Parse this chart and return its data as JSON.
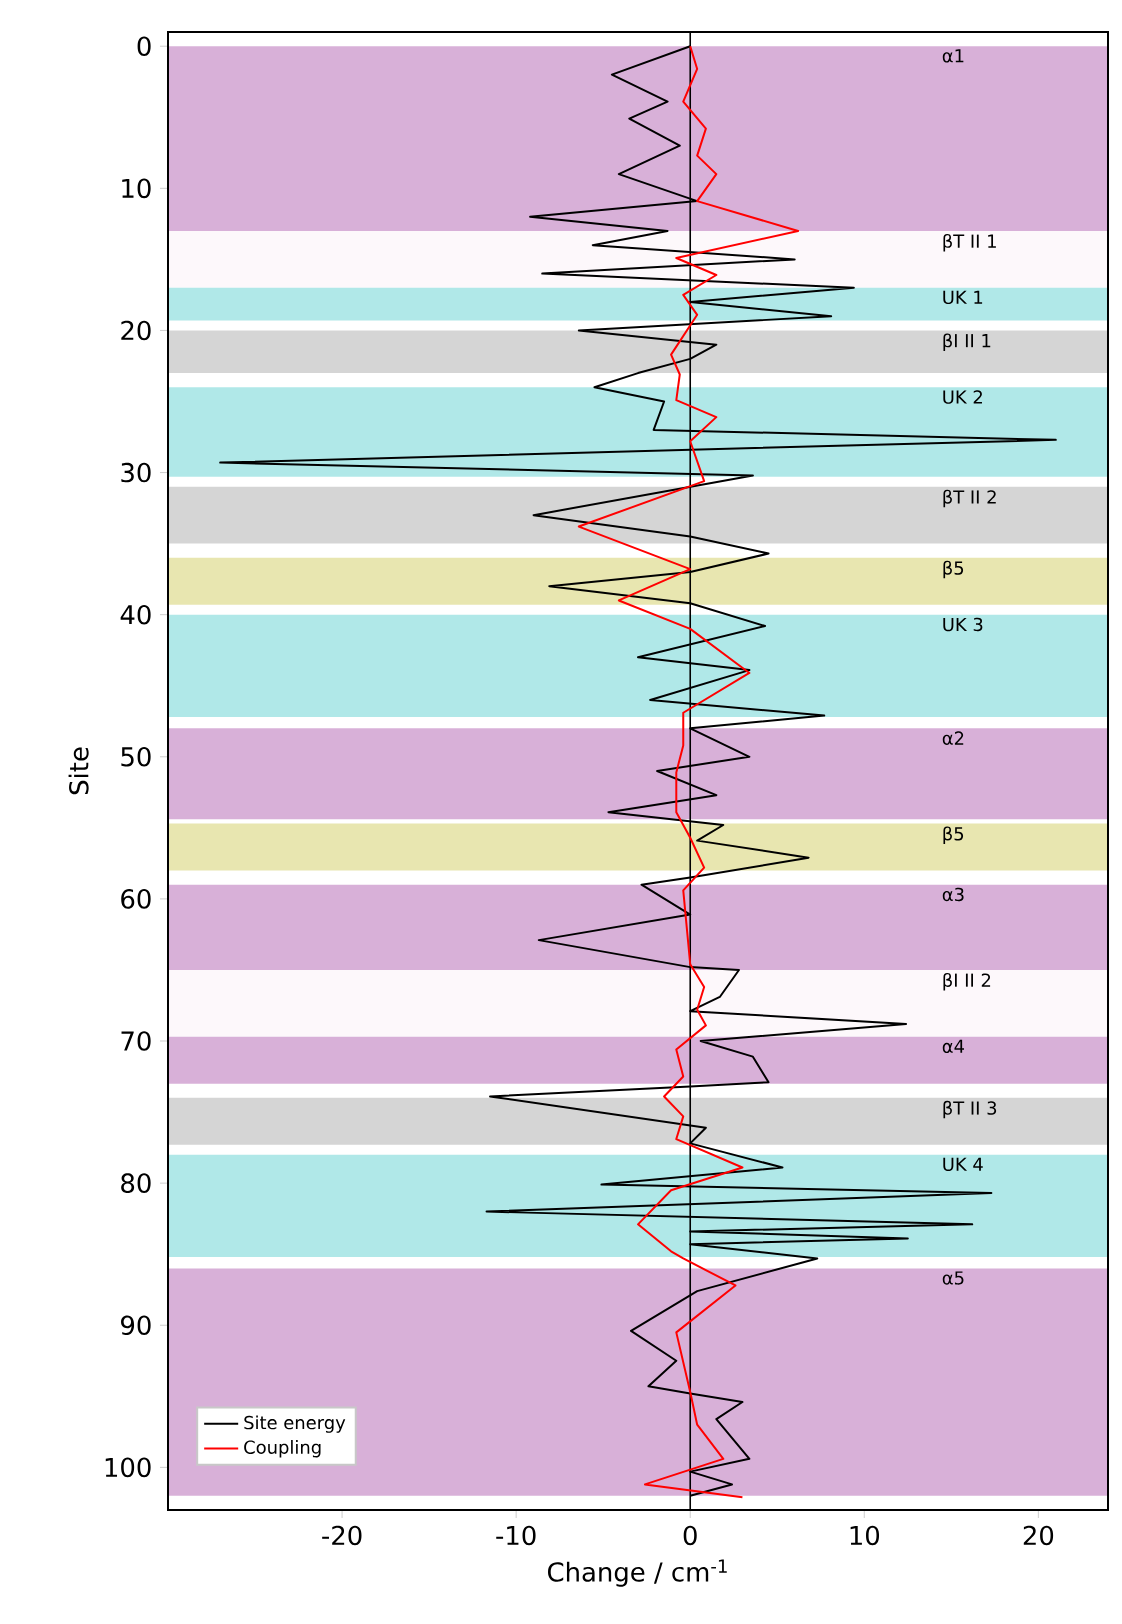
{
  "chart_data": {
    "type": "line",
    "xlabel": "Change / cm$^{-1}$",
    "ylabel": "Site",
    "xlim": [
      -30,
      24
    ],
    "ylim": [
      103,
      -1
    ],
    "xticks": [
      -20,
      -10,
      0,
      10,
      20
    ],
    "yticks": [
      0,
      10,
      20,
      30,
      40,
      50,
      60,
      70,
      80,
      90,
      100
    ],
    "legend": "bottom left",
    "grid": false,
    "line_style": "solid",
    "marker": "none",
    "series": [
      {
        "name": "Site energy",
        "color": "#000000",
        "x": [
          0,
          -4.5,
          -1.3,
          -3.5,
          -0.6,
          -4.1,
          0.4,
          -9.2,
          -1.3,
          -5.6,
          6.0,
          -8.5,
          9.4,
          0,
          8.1,
          -6.4,
          1.5,
          0,
          -3.0,
          -5.5,
          -1.5,
          -2.1,
          21,
          -27,
          3.6,
          -9.0,
          0,
          4.5,
          0,
          -8.1,
          0,
          4.3,
          -3.0,
          3.4,
          -2.3,
          7.7,
          0,
          3.4,
          -1.9,
          1.5,
          -4.7,
          1.9,
          0.4,
          6.8,
          0,
          -2.8,
          0,
          -8.7,
          0,
          2.8,
          1.7,
          0,
          12.4,
          0.6,
          3.6,
          4.5,
          0,
          -11.5,
          0.9,
          0,
          5.3,
          -5.1,
          17.3,
          -11.7,
          16.2,
          0,
          12.5,
          0,
          7.3,
          0.4,
          -3.4,
          -0.8,
          -2.4,
          0,
          3.0,
          1.5,
          3.4,
          0,
          2.4,
          0
        ],
        "values": [
          0,
          2,
          3.9,
          5.1,
          7,
          9,
          10.9,
          12,
          13,
          14,
          15,
          16,
          17,
          18,
          19,
          20,
          21,
          22,
          23,
          24,
          25,
          27,
          27.7,
          29.3,
          30.2,
          33,
          34.5,
          35.7,
          37,
          38,
          39.2,
          40.8,
          43,
          43.9,
          46,
          47.1,
          48,
          50,
          51,
          52.7,
          53.9,
          54.8,
          55.9,
          57.1,
          58.5,
          59,
          61.1,
          62.9,
          64.8,
          65,
          66.9,
          67.9,
          68.8,
          70,
          71.1,
          72.9,
          73.2,
          73.9,
          76.1,
          77.2,
          78.9,
          80.1,
          80.7,
          82,
          82.9,
          83.4,
          83.9,
          84.3,
          85.3,
          87.6,
          90.4,
          92.5,
          94.3,
          94.8,
          95.4,
          96.6,
          99.4,
          100.3,
          101.2,
          102
        ]
      },
      {
        "name": "Coupling",
        "color": "#ff0000",
        "x": [
          0,
          0.4,
          -0.4,
          0.9,
          0.4,
          1.5,
          0.4,
          6.2,
          -0.8,
          1.5,
          -0.4,
          0.4,
          -1.1,
          -0.6,
          -0.8,
          1.5,
          0,
          0.8,
          -6.4,
          0,
          -4.1,
          0,
          3.4,
          -0.4,
          -0.4,
          -0.8,
          -0.8,
          0,
          0.8,
          -0.4,
          0,
          0.8,
          0.4,
          0.9,
          -0.8,
          -0.4,
          -1.5,
          -0.4,
          -0.8,
          3.0,
          -1.1,
          -3.0,
          -1.1,
          -0.4,
          2.6,
          -0.8,
          0,
          0.4,
          1.9,
          -2.6,
          3.0
        ],
        "values": [
          0,
          1.6,
          3.9,
          5.8,
          7.7,
          9,
          10.9,
          13,
          14.9,
          16.1,
          17.5,
          18.9,
          21.7,
          23.1,
          24.9,
          26.1,
          27.8,
          30.6,
          33.8,
          36.8,
          39,
          41,
          44.1,
          46.9,
          49.2,
          51.1,
          53.9,
          55.7,
          57.8,
          59.4,
          64.6,
          66.2,
          67.8,
          68.9,
          70.6,
          72.5,
          73.9,
          75.3,
          76.9,
          78.9,
          80.5,
          82.9,
          84.8,
          85.3,
          87.2,
          90.5,
          94.7,
          97,
          99.4,
          101.2,
          102.1
        ]
      }
    ],
    "ref_lines": [
      {
        "axis": "x",
        "value": 0,
        "color": "#000000"
      }
    ],
    "bands": [
      {
        "axis": "y",
        "from": 0,
        "to": 13,
        "label": "α1",
        "color": "#d8b0d8"
      },
      {
        "axis": "y",
        "from": 13,
        "to": 17,
        "label": "βT II 1",
        "color": "#fdf8fb"
      },
      {
        "axis": "y",
        "from": 17,
        "to": 19.3,
        "label": "UK 1",
        "color": "#b0e8e8"
      },
      {
        "axis": "y",
        "from": 20,
        "to": 23,
        "label": "βI II 1",
        "color": "#d5d5d5"
      },
      {
        "axis": "y",
        "from": 24,
        "to": 30.3,
        "label": "UK 2",
        "color": "#b0e8e8"
      },
      {
        "axis": "y",
        "from": 31,
        "to": 35,
        "label": "βT II 2",
        "color": "#d5d5d5"
      },
      {
        "axis": "y",
        "from": 36,
        "to": 39.3,
        "label": "β5",
        "color": "#e8e6b0"
      },
      {
        "axis": "y",
        "from": 40,
        "to": 47.2,
        "label": "UK 3",
        "color": "#b0e8e8"
      },
      {
        "axis": "y",
        "from": 48,
        "to": 54.4,
        "label": "α2",
        "color": "#d8b0d8"
      },
      {
        "axis": "y",
        "from": 54.7,
        "to": 58,
        "label": "β5",
        "color": "#e8e6b0"
      },
      {
        "axis": "y",
        "from": 59,
        "to": 65,
        "label": "α3",
        "color": "#d8b0d8"
      },
      {
        "axis": "y",
        "from": 65,
        "to": 69.7,
        "label": "βI II 2",
        "color": "#fdf8fb"
      },
      {
        "axis": "y",
        "from": 69.7,
        "to": 73,
        "label": "α4",
        "color": "#d8b0d8"
      },
      {
        "axis": "y",
        "from": 74,
        "to": 77.3,
        "label": "βT II 3",
        "color": "#d5d5d5"
      },
      {
        "axis": "y",
        "from": 78,
        "to": 85.2,
        "label": "UK 4",
        "color": "#b0e8e8"
      },
      {
        "axis": "y",
        "from": 86,
        "to": 102,
        "label": "α5",
        "color": "#d8b0d8"
      }
    ]
  }
}
